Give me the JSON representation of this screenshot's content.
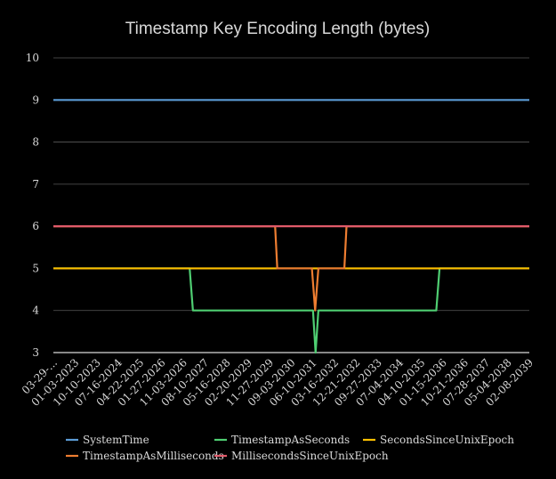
{
  "chart_data": {
    "type": "line",
    "title": "Timestamp Key Encoding Length (bytes)",
    "xlabel": "",
    "ylabel": "",
    "ylim": [
      3,
      10
    ],
    "yticks": [
      3,
      4,
      5,
      6,
      7,
      8,
      9,
      10
    ],
    "grid": true,
    "legend_position": "bottom",
    "categories": [
      "03-29-...",
      "01-03-2023",
      "10-10-2023",
      "07-16-2024",
      "04-22-2025",
      "01-27-2026",
      "11-03-2026",
      "08-10-2027",
      "05-16-2028",
      "02-20-2029",
      "11-27-2029",
      "09-03-2030",
      "06-10-2031",
      "03-16-2032",
      "12-21-2032",
      "09-27-2033",
      "07-04-2034",
      "04-10-2035",
      "01-15-2036",
      "10-21-2036",
      "07-28-2037",
      "05-04-2038",
      "02-08-2039"
    ],
    "series": [
      {
        "name": "SystemTime",
        "color": "#5b9bd5",
        "points": [
          [
            0,
            9
          ],
          [
            22,
            9
          ]
        ]
      },
      {
        "name": "TimestampAsSeconds",
        "color": "#4fce72",
        "points": [
          [
            0,
            5
          ],
          [
            6.3,
            5
          ],
          [
            6.45,
            4
          ],
          [
            12.0,
            4
          ],
          [
            12.12,
            3
          ],
          [
            12.25,
            4
          ],
          [
            17.7,
            4
          ],
          [
            17.85,
            5
          ],
          [
            22,
            5
          ]
        ]
      },
      {
        "name": "SecondsSinceUnixEpoch",
        "color": "#ffc000",
        "points": [
          [
            0,
            5
          ],
          [
            22,
            5
          ]
        ]
      },
      {
        "name": "TimestampAsMilliseconds",
        "color": "#ed7d31",
        "points": [
          [
            0,
            6
          ],
          [
            10.25,
            6
          ],
          [
            10.35,
            5
          ],
          [
            11.95,
            5
          ],
          [
            12.1,
            4
          ],
          [
            12.25,
            5
          ],
          [
            13.45,
            5
          ],
          [
            13.55,
            6
          ],
          [
            22,
            6
          ]
        ]
      },
      {
        "name": "MillisecondsSinceUnixEpoch",
        "color": "#e05a6a",
        "points": [
          [
            0,
            6
          ],
          [
            22,
            6
          ]
        ]
      }
    ],
    "legend": [
      "SystemTime",
      "TimestampAsSeconds",
      "SecondsSinceUnixEpoch",
      "TimestampAsMilliseconds",
      "MillisecondsSinceUnixEpoch"
    ]
  },
  "colors": {
    "background": "#000000",
    "text": "#d9d9d9",
    "gridline": "#595959",
    "axis": "#d9d9d9"
  }
}
